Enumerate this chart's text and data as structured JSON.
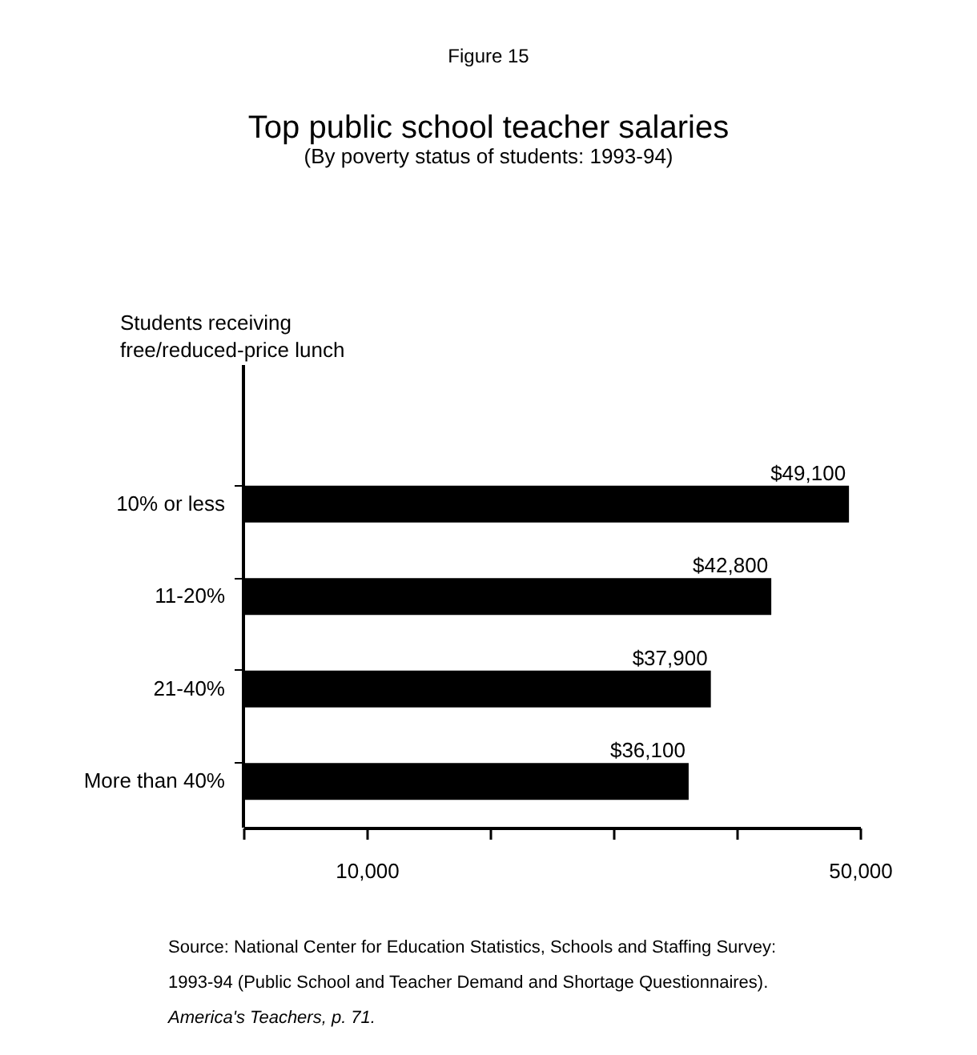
{
  "chart_data": {
    "type": "bar",
    "orientation": "horizontal",
    "title": "Top public school teacher salaries",
    "subtitle": "(By poverty status of students:  1993-94)",
    "ylabel": "Students receiving\nfree/reduced-price lunch",
    "categories": [
      "10% or less",
      "11-20%",
      "21-40%",
      "More than 40%"
    ],
    "values": [
      49100,
      42800,
      37900,
      36100
    ],
    "value_labels": [
      "$49,100",
      "$42,800",
      "$37,900",
      "$36,100"
    ],
    "color": "#000000",
    "xlim": [
      0,
      50000
    ],
    "xticks": [
      {
        "value": 0,
        "label": null
      },
      {
        "value": 10000,
        "label": "10,000"
      },
      {
        "value": 20000,
        "label": null
      },
      {
        "value": 30000,
        "label": null
      },
      {
        "value": 40000,
        "label": null
      },
      {
        "value": 50000,
        "label": "50,000"
      }
    ],
    "grid": false,
    "annotations": [
      "Figure 15",
      "Source:  National Center for Education Statistics, Schools and Staffing Survey:",
      "1993-94 (Public School and Teacher Demand and Shortage Questionnaires).",
      "America's Teachers, p. 71."
    ]
  }
}
